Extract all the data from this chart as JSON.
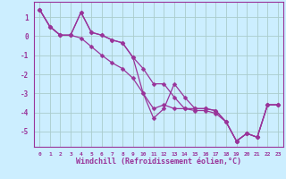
{
  "xlabel": "Windchill (Refroidissement éolien,°C)",
  "background_color": "#cceeff",
  "grid_color": "#aacccc",
  "line_color": "#993399",
  "spine_color": "#993399",
  "x": [
    0,
    1,
    2,
    3,
    4,
    5,
    6,
    7,
    8,
    9,
    10,
    11,
    12,
    13,
    14,
    15,
    16,
    17,
    18,
    19,
    20,
    21,
    22,
    23
  ],
  "y_line1": [
    1.4,
    0.5,
    0.05,
    0.05,
    1.25,
    0.2,
    0.05,
    -0.2,
    -0.35,
    -1.1,
    -1.7,
    -2.5,
    -2.5,
    -3.2,
    -3.8,
    -3.8,
    -3.8,
    -3.9,
    -4.5,
    -5.5,
    -5.1,
    -5.3,
    -3.6,
    -3.6
  ],
  "y_line2": [
    1.4,
    0.5,
    0.05,
    0.05,
    -0.1,
    -0.55,
    -1.0,
    -1.4,
    -1.7,
    -2.2,
    -3.0,
    -3.8,
    -3.6,
    -3.8,
    -3.8,
    -3.9,
    -3.9,
    -4.05,
    -4.5,
    -5.5,
    -5.1,
    -5.3,
    -3.6,
    -3.6
  ],
  "y_line3": [
    1.4,
    0.5,
    0.05,
    0.05,
    1.25,
    0.2,
    0.05,
    -0.2,
    -0.35,
    -1.1,
    -3.0,
    -4.3,
    -3.8,
    -2.5,
    -3.2,
    -3.8,
    -3.8,
    -3.9,
    -4.5,
    -5.5,
    -5.1,
    -5.3,
    -3.6,
    -3.6
  ],
  "ylim": [
    -5.8,
    1.8
  ],
  "xlim": [
    -0.5,
    23.5
  ],
  "yticks": [
    1,
    0,
    -1,
    -2,
    -3,
    -4,
    -5
  ],
  "xticks": [
    0,
    1,
    2,
    3,
    4,
    5,
    6,
    7,
    8,
    9,
    10,
    11,
    12,
    13,
    14,
    15,
    16,
    17,
    18,
    19,
    20,
    21,
    22,
    23
  ],
  "xtick_labels": [
    "0",
    "1",
    "2",
    "3",
    "4",
    "5",
    "6",
    "7",
    "8",
    "9",
    "10",
    "11",
    "12",
    "13",
    "14",
    "15",
    "16",
    "17",
    "18",
    "19",
    "20",
    "21",
    "22",
    "23"
  ],
  "ytick_labels": [
    "1",
    "0",
    "-1",
    "-2",
    "-3",
    "-4",
    "-5"
  ]
}
